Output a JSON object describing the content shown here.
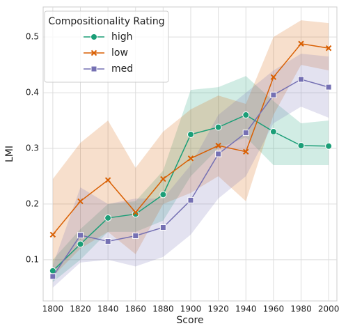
{
  "chart_data": {
    "type": "line",
    "x_label": "Score",
    "y_label": "LMI",
    "x": [
      1800,
      1820,
      1840,
      1860,
      1880,
      1900,
      1920,
      1940,
      1960,
      1980,
      2000
    ],
    "series": [
      {
        "name": "high",
        "color": "#1b9e77",
        "marker": "circle",
        "values": [
          0.08,
          0.128,
          0.175,
          0.182,
          0.217,
          0.325,
          0.338,
          0.36,
          0.33,
          0.305,
          0.304
        ],
        "lower": [
          0.06,
          0.1,
          0.15,
          0.15,
          0.17,
          0.25,
          0.3,
          0.32,
          0.27,
          0.27,
          0.27
        ],
        "upper": [
          0.1,
          0.155,
          0.2,
          0.205,
          0.26,
          0.405,
          0.41,
          0.43,
          0.385,
          0.345,
          0.35
        ]
      },
      {
        "name": "low",
        "color": "#d95f02",
        "marker": "x",
        "values": [
          0.145,
          0.205,
          0.243,
          0.185,
          0.245,
          0.282,
          0.305,
          0.294,
          0.428,
          0.488,
          0.48
        ],
        "lower": [
          0.07,
          0.12,
          0.15,
          0.11,
          0.2,
          0.22,
          0.25,
          0.205,
          0.36,
          0.45,
          0.44
        ],
        "upper": [
          0.245,
          0.31,
          0.35,
          0.265,
          0.33,
          0.37,
          0.395,
          0.38,
          0.5,
          0.53,
          0.525
        ]
      },
      {
        "name": "med",
        "color": "#7570b3",
        "marker": "square",
        "values": [
          0.07,
          0.144,
          0.133,
          0.143,
          0.158,
          0.207,
          0.29,
          0.328,
          0.396,
          0.424,
          0.41
        ],
        "lower": [
          0.05,
          0.095,
          0.1,
          0.088,
          0.105,
          0.145,
          0.21,
          0.25,
          0.345,
          0.375,
          0.355
        ],
        "upper": [
          0.09,
          0.23,
          0.2,
          0.21,
          0.21,
          0.27,
          0.36,
          0.4,
          0.44,
          0.47,
          0.465
        ]
      }
    ],
    "legend_title": "Compositionality Rating",
    "legend": "upper left",
    "xlim": [
      1793,
      2006
    ],
    "xticks": [
      1800,
      1820,
      1840,
      1860,
      1880,
      1900,
      1920,
      1940,
      1960,
      1980,
      2000
    ],
    "ylim": [
      0.026,
      0.554
    ],
    "yticks": [
      0.1,
      0.2,
      0.3,
      0.4,
      0.5
    ],
    "grid": true
  }
}
